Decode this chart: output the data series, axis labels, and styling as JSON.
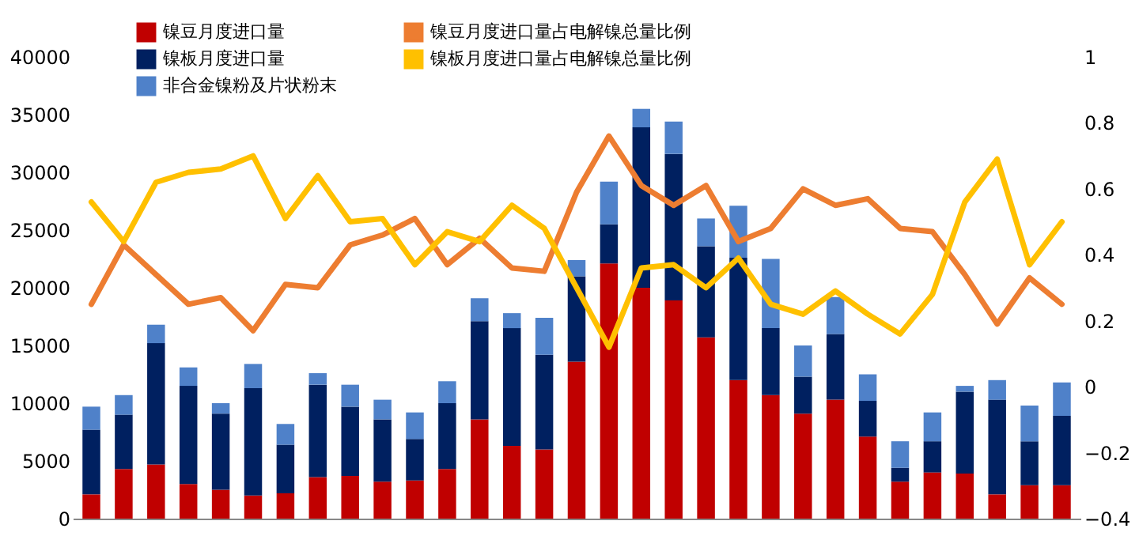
{
  "chart_data": {
    "type": "bar",
    "stacked": true,
    "categories": [
      null,
      null,
      null,
      null,
      null,
      null,
      null,
      null,
      null,
      null,
      null,
      null,
      null,
      null,
      null,
      null,
      null,
      null,
      null,
      null,
      null,
      null,
      null,
      null,
      null,
      null,
      null,
      null,
      null,
      null,
      null
    ],
    "series": [
      {
        "name": "镍豆月度进口量",
        "color": "#c00000",
        "values": [
          2100,
          4300,
          4700,
          3000,
          2500,
          2000,
          2200,
          3600,
          3700,
          3200,
          3300,
          4300,
          8600,
          6300,
          6000,
          13600,
          22100,
          20000,
          18900,
          15700,
          12000,
          10700,
          9100,
          10300,
          7100,
          3200,
          4000,
          3900,
          2100,
          2900,
          2900
        ]
      },
      {
        "name": "镍板月度进口量",
        "color": "#002060",
        "values": [
          5600,
          4700,
          10500,
          8500,
          6600,
          9300,
          4200,
          8000,
          6000,
          5400,
          3600,
          5700,
          8500,
          10200,
          8200,
          7400,
          3400,
          13900,
          12700,
          7900,
          10600,
          5800,
          3200,
          5700,
          3100,
          1200,
          2700,
          7100,
          8200,
          3800,
          6000
        ]
      },
      {
        "name": "非合金镍粉及片状粉末",
        "color": "#4f81c9",
        "values": [
          2000,
          1700,
          1600,
          1600,
          900,
          2100,
          1800,
          1000,
          1900,
          1700,
          2300,
          1900,
          2000,
          1300,
          3200,
          1400,
          3700,
          1600,
          2800,
          2400,
          4500,
          6000,
          2700,
          3200,
          2300,
          2300,
          2500,
          500,
          1700,
          3100,
          2900
        ]
      },
      {
        "name": "镍豆月度进口量占电解镍总量比例",
        "color": "#ed7d31",
        "type": "line",
        "axis": "y2",
        "values": [
          0.25,
          0.43,
          0.34,
          0.25,
          0.27,
          0.17,
          0.31,
          0.3,
          0.43,
          0.46,
          0.51,
          0.37,
          0.45,
          0.36,
          0.35,
          0.59,
          0.76,
          0.61,
          0.55,
          0.61,
          0.44,
          0.48,
          0.6,
          0.55,
          0.57,
          0.48,
          0.47,
          0.34,
          0.19,
          0.33,
          0.25
        ]
      },
      {
        "name": "镍板月度进口量占电解镍总量比例",
        "color": "#ffc000",
        "type": "line",
        "axis": "y2",
        "values": [
          0.56,
          0.44,
          0.62,
          0.65,
          0.66,
          0.7,
          0.51,
          0.64,
          0.5,
          0.51,
          0.37,
          0.47,
          0.44,
          0.55,
          0.48,
          0.3,
          0.12,
          0.36,
          0.37,
          0.3,
          0.39,
          0.25,
          0.22,
          0.29,
          0.22,
          0.16,
          0.28,
          0.56,
          0.69,
          0.37,
          0.5
        ]
      }
    ],
    "ylim": [
      0,
      40000
    ],
    "yticks": [
      0,
      5000,
      10000,
      15000,
      20000,
      25000,
      30000,
      35000,
      40000
    ],
    "y2lim": [
      -0.4,
      1
    ],
    "y2ticks": [
      -0.4,
      -0.2,
      0,
      0.2,
      0.4,
      0.6,
      0.8,
      1
    ],
    "tick_labels": "y",
    "grid": false,
    "legend": "top",
    "marker": "none",
    "line_style": "solid"
  }
}
